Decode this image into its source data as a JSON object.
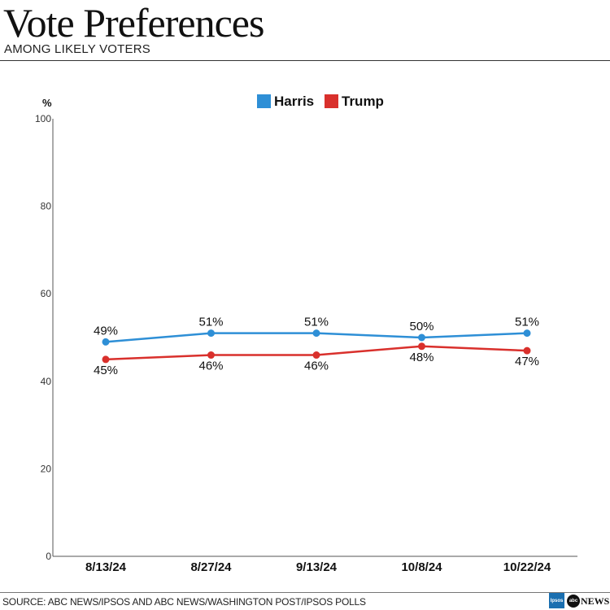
{
  "header": {
    "title": "Vote Preferences",
    "subtitle": "AMONG LIKELY VOTERS"
  },
  "footer": {
    "source": "SOURCE: ABC NEWS/IPSOS AND ABC NEWS/WASHINGTON POST/IPSOS POLLS",
    "logos": [
      "Ipsos",
      "abc NEWS"
    ]
  },
  "chart_data": {
    "type": "line",
    "title": "Vote Preferences",
    "subtitle": "AMONG LIKELY VOTERS",
    "ylabel": "%",
    "xlabel": "",
    "ylim": [
      0,
      100
    ],
    "yticks": [
      0,
      20,
      40,
      60,
      80,
      100
    ],
    "categories": [
      "8/13/24",
      "8/27/24",
      "9/13/24",
      "10/8/24",
      "10/22/24"
    ],
    "series": [
      {
        "name": "Harris",
        "color": "#2e8fd6",
        "values": [
          49,
          51,
          51,
          50,
          51
        ],
        "labels": [
          "49%",
          "51%",
          "51%",
          "50%",
          "51%"
        ],
        "label_position": "above"
      },
      {
        "name": "Trump",
        "color": "#d9302c",
        "values": [
          45,
          46,
          46,
          48,
          47
        ],
        "labels": [
          "45%",
          "46%",
          "46%",
          "48%",
          "47%"
        ],
        "label_position": "below"
      }
    ],
    "legend": "top",
    "grid": false
  }
}
